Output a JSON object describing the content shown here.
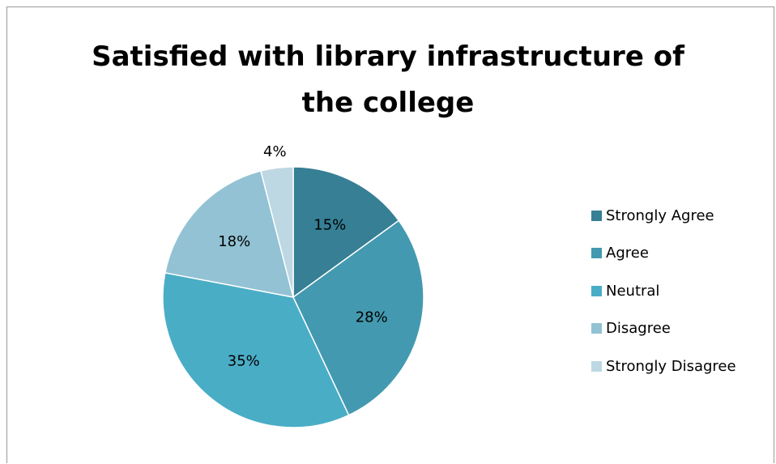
{
  "chart_data": {
    "type": "pie",
    "title": "Satisfied with library infrastructure of the college",
    "title_lines": [
      "Satisfied with library infrastructure of",
      "the college"
    ],
    "categories": [
      "Strongly Agree",
      "Agree",
      "Neutral",
      "Disagree",
      "Strongly Disagree"
    ],
    "values": [
      15,
      28,
      35,
      18,
      4
    ],
    "data_labels": [
      "15%",
      "28%",
      "35%",
      "18%",
      "4%"
    ],
    "colors": [
      "#367f95",
      "#4399b0",
      "#4aadc6",
      "#92c2d4",
      "#bdd8e3"
    ],
    "legend_position": "right",
    "start_angle": "12 o'clock",
    "direction": "clockwise"
  }
}
